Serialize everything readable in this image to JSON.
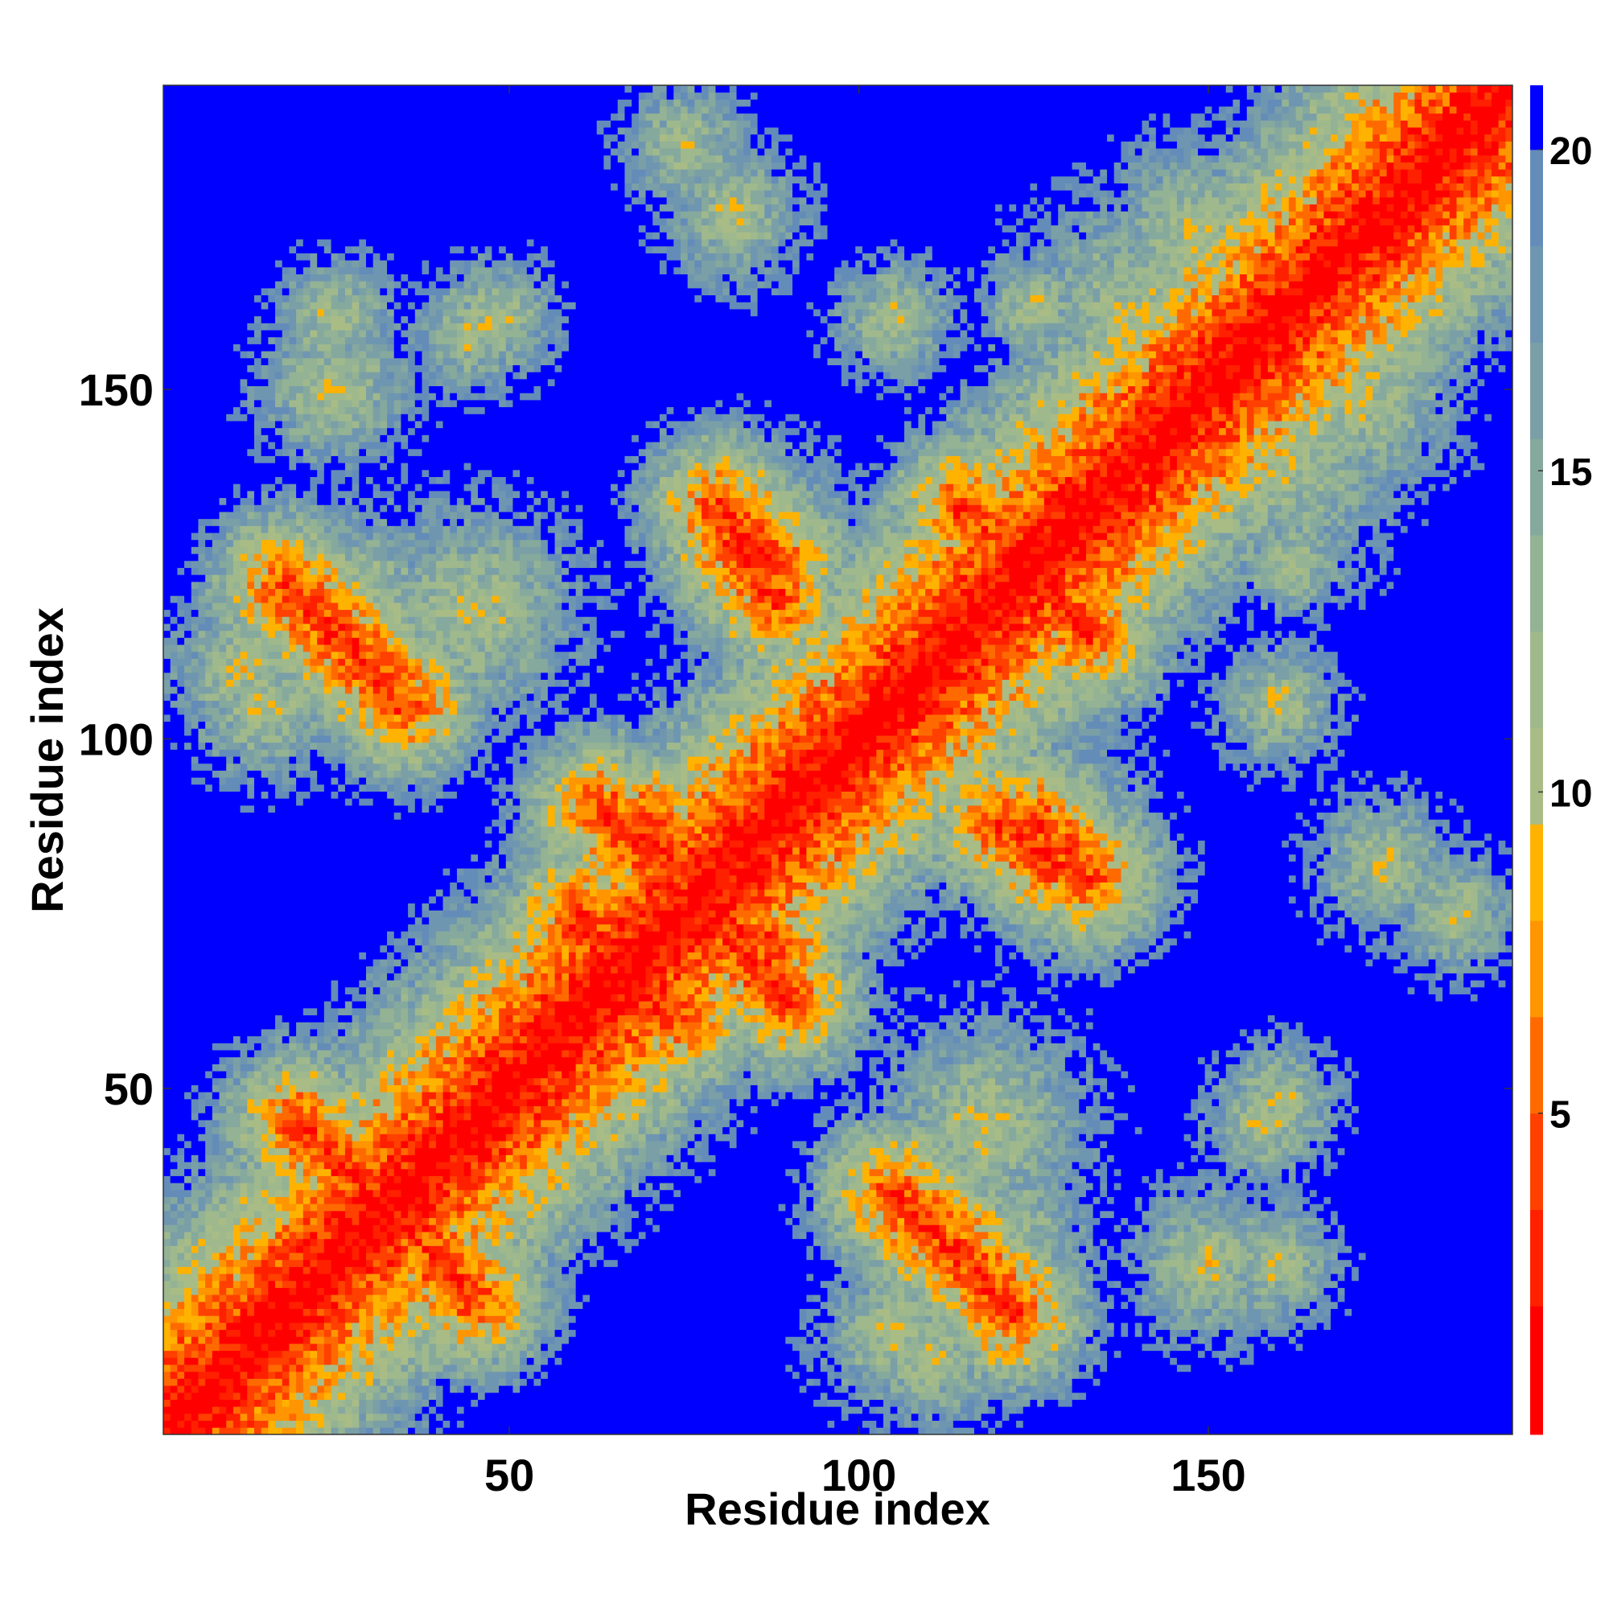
{
  "chart_data": {
    "type": "heatmap",
    "title": "",
    "xlabel": "Residue index",
    "ylabel": "Residue index",
    "x_range": [
      1,
      193
    ],
    "y_range": [
      1,
      193
    ],
    "x_ticks": [
      50,
      100,
      150
    ],
    "y_ticks": [
      50,
      100,
      150
    ],
    "colorbar": {
      "range": [
        0,
        21
      ],
      "ticks": [
        5,
        10,
        15,
        20
      ],
      "levels": [
        {
          "max": 2,
          "color": "#ff0000"
        },
        {
          "max": 3.5,
          "color": "#ff2000"
        },
        {
          "max": 5,
          "color": "#ff4000"
        },
        {
          "max": 6.5,
          "color": "#ff6a00"
        },
        {
          "max": 8,
          "color": "#ff9500"
        },
        {
          "max": 9.5,
          "color": "#ffb300"
        },
        {
          "max": 11,
          "color": "#a9bc86"
        },
        {
          "max": 12.5,
          "color": "#9fb98d"
        },
        {
          "max": 14,
          "color": "#94b294"
        },
        {
          "max": 15.5,
          "color": "#86a99e"
        },
        {
          "max": 17,
          "color": "#7a9fa7"
        },
        {
          "max": 18.5,
          "color": "#6f96b0"
        },
        {
          "max": 20,
          "color": "#648cb8"
        },
        {
          "max": 21,
          "color": "#0000ff"
        }
      ]
    },
    "matrix_note_free": true,
    "contact_features": {
      "diagonal": true,
      "antiparallel_segments": [
        [
          [
            20,
            45
          ],
          [
            45,
            20
          ]
        ],
        [
          [
            25,
            115
          ],
          [
            35,
            105
          ]
        ],
        [
          [
            82,
            128
          ],
          [
            88,
            120
          ]
        ],
        [
          [
            115,
            133
          ],
          [
            123,
            125
          ]
        ],
        [
          [
            63,
            90
          ],
          [
            75,
            78
          ]
        ],
        [
          [
            60,
            75
          ],
          [
            73,
            60
          ]
        ],
        [
          [
            125,
            88
          ],
          [
            133,
            80
          ]
        ],
        [
          [
            113,
            28
          ],
          [
            122,
            18
          ]
        ],
        [
          [
            78,
            75
          ],
          [
            88,
            70
          ]
        ]
      ],
      "clusters": [
        [
          25,
          150,
          10
        ],
        [
          45,
          158,
          8
        ],
        [
          45,
          118,
          14
        ],
        [
          85,
          125,
          12
        ],
        [
          120,
          125,
          14
        ],
        [
          35,
          35,
          12
        ],
        [
          80,
          80,
          14
        ],
        [
          130,
          85,
          12
        ],
        [
          120,
          28,
          12
        ],
        [
          160,
          140,
          16
        ],
        [
          172,
          148,
          12
        ],
        [
          180,
          185,
          12
        ],
        [
          12,
          110,
          10
        ],
        [
          75,
          185,
          8
        ],
        [
          125,
          162,
          7
        ],
        [
          160,
          48,
          8
        ],
        [
          160,
          25,
          8
        ],
        [
          175,
          82,
          9
        ],
        [
          105,
          15,
          10
        ],
        [
          160,
          105,
          8
        ]
      ]
    }
  }
}
